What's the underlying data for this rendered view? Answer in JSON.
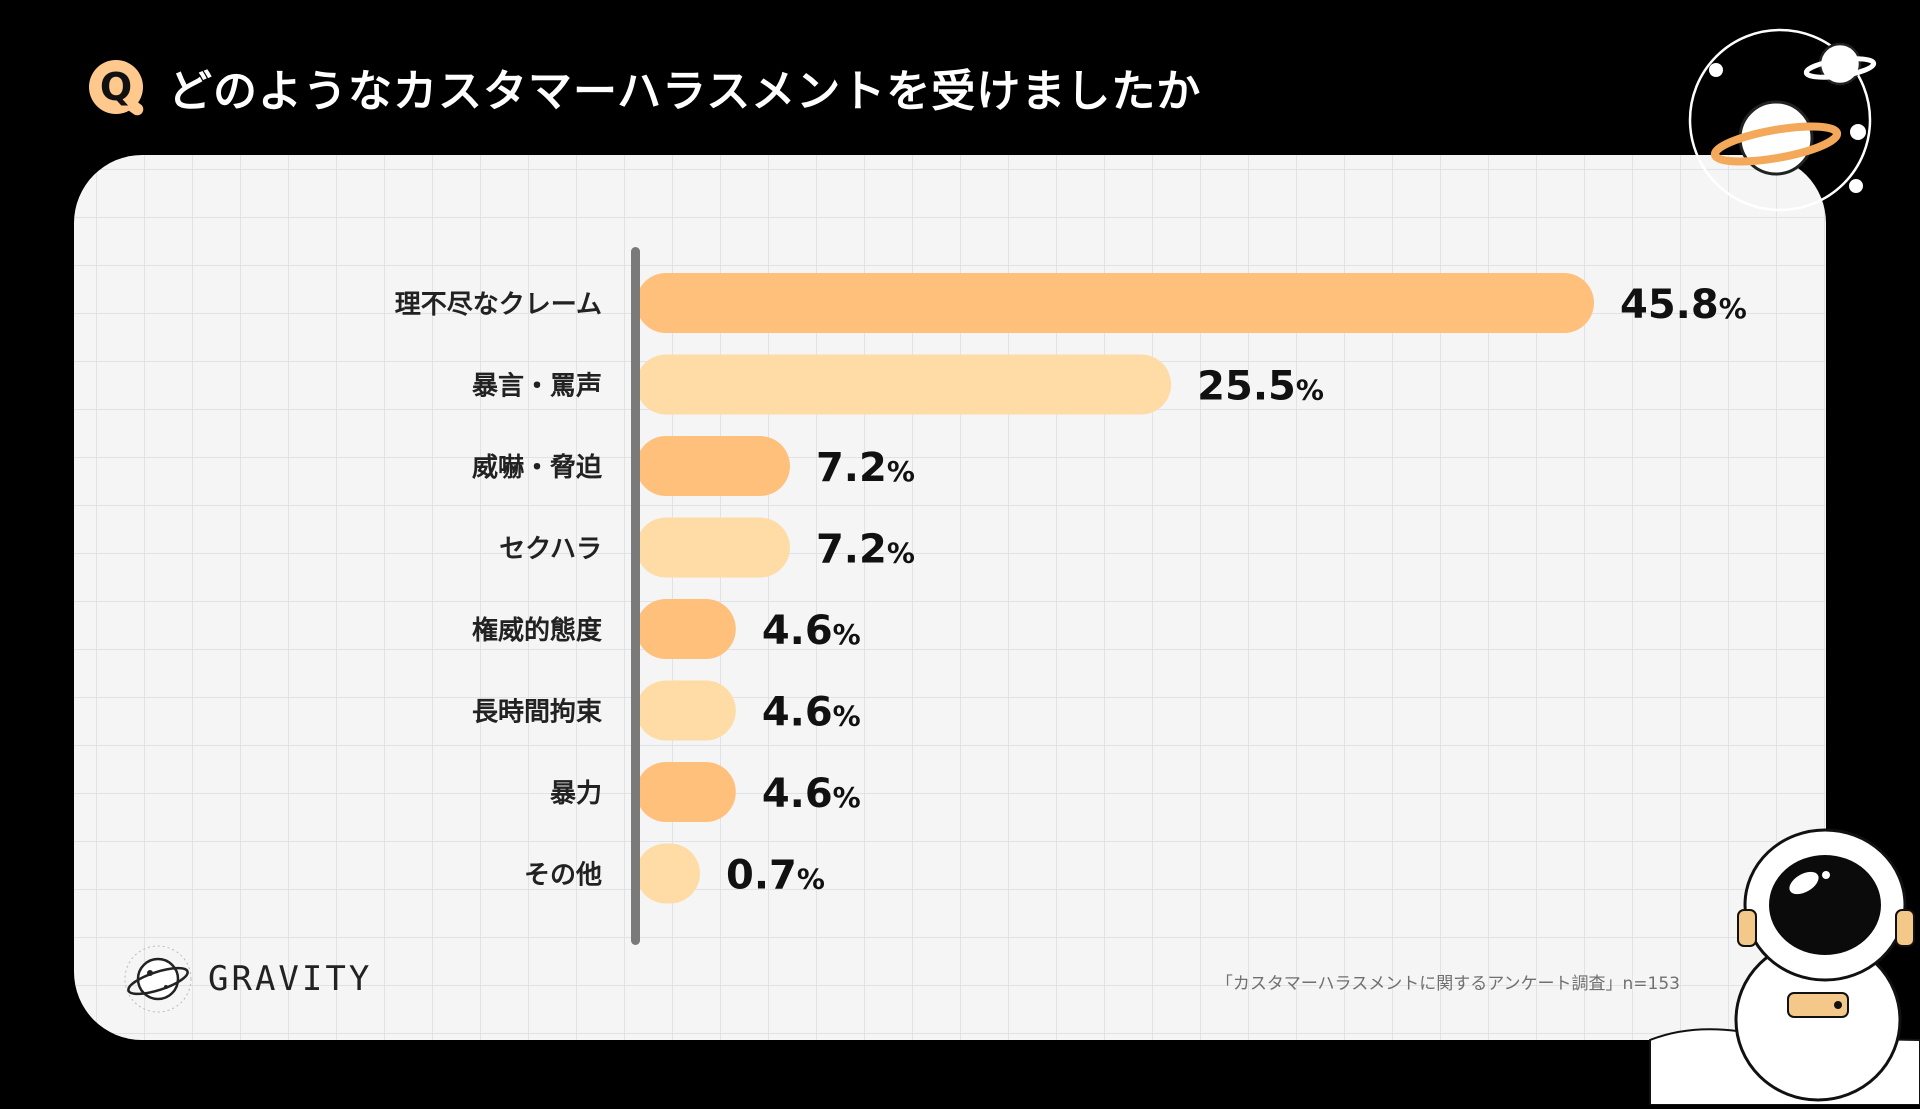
{
  "header": {
    "q_letter": "Q",
    "title": "どのようなカスタマーハラスメントを受けましたか"
  },
  "brand": {
    "name": "GRAVITY"
  },
  "source": "「カスタマーハラスメントに関するアンケート調査」n=153",
  "colors": {
    "bar_dark": "#ffc07c",
    "bar_light": "#ffdca6",
    "badge": "#ffc98d",
    "axis": "#7a7a7a"
  },
  "chart_data": {
    "type": "bar",
    "orientation": "horizontal",
    "title": "どのようなカスタマーハラスメントを受けましたか",
    "categories": [
      "理不尽なクレーム",
      "暴言・罵声",
      "威嚇・脅迫",
      "セクハラ",
      "権威的態度",
      "長時間拘束",
      "暴力",
      "その他"
    ],
    "values": [
      45.8,
      25.5,
      7.2,
      7.2,
      4.6,
      4.6,
      4.6,
      0.7
    ],
    "labels": [
      "45.8",
      "25.5",
      "7.2",
      "7.2",
      "4.6",
      "4.6",
      "4.6",
      "0.7"
    ],
    "unit": "%",
    "xlim": [
      0,
      45.8
    ],
    "grid": true,
    "legend": "none"
  }
}
